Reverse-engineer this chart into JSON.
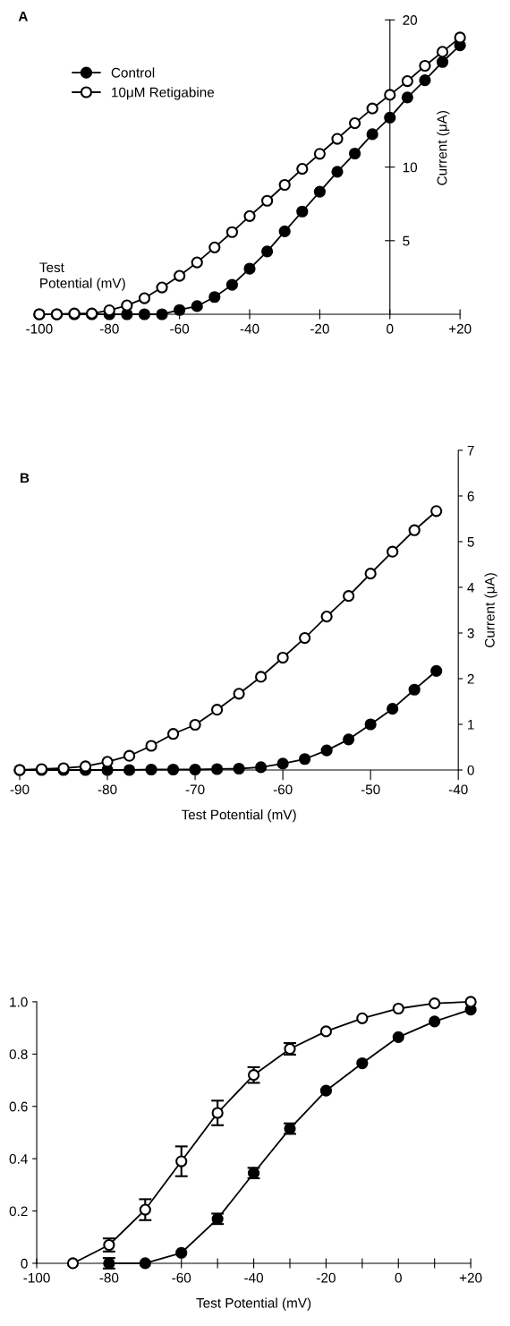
{
  "chart_data": [
    {
      "type": "line",
      "title": "A",
      "xlabel": "Test\nPotential (mV)",
      "ylabel": "Current (μA)",
      "marker": "circle",
      "legend": "top left",
      "grid": false,
      "xlim": [
        -100,
        20
      ],
      "xticks": [
        -100,
        -80,
        -60,
        -40,
        -20,
        0,
        {
          "value": 20,
          "label": "+20"
        }
      ],
      "ylim": [
        0,
        20
      ],
      "yticks": [
        5,
        10,
        20
      ],
      "x": [
        -100,
        -95,
        -90,
        -85,
        -80,
        -75,
        -70,
        -65,
        -60,
        -55,
        -50,
        -45,
        -40,
        -35,
        -30,
        -25,
        -20,
        -15,
        -10,
        -5,
        0,
        5,
        10,
        15,
        20
      ],
      "series": [
        {
          "name": "Control",
          "color": "#000000",
          "values": [
            0,
            0,
            0,
            0,
            0,
            0,
            0,
            0,
            0.29,
            0.55,
            1.17,
            2.0,
            3.1,
            4.27,
            5.63,
            6.98,
            8.33,
            9.68,
            10.92,
            12.23,
            13.36,
            14.73,
            15.9,
            17.14,
            18.27
          ]
        },
        {
          "name": "10μM Retigabine",
          "color": "#000000",
          "values": [
            0,
            0,
            0.05,
            0.05,
            0.27,
            0.6,
            1.09,
            1.82,
            2.61,
            3.52,
            4.54,
            5.58,
            6.67,
            7.71,
            8.79,
            9.88,
            10.9,
            11.92,
            12.98,
            13.98,
            14.91,
            15.84,
            16.88,
            17.83,
            18.8
          ]
        }
      ]
    },
    {
      "type": "line",
      "title": "B",
      "xlabel": "Test Potential (mV)",
      "ylabel": "Current (μA)",
      "marker": "circle",
      "grid": false,
      "xlim": [
        -90,
        -40
      ],
      "xticks": [
        -90,
        -80,
        -70,
        -60,
        -50,
        -40
      ],
      "ylim": [
        0,
        7
      ],
      "yticks": [
        0,
        1,
        2,
        3,
        4,
        5,
        6,
        7
      ],
      "x": [
        -90,
        -87.5,
        -85,
        -82.5,
        -80,
        -77.5,
        -75,
        -72.5,
        -70,
        -67.5,
        -65,
        -62.5,
        -60,
        -57.5,
        -55,
        -52.5,
        -50,
        -47.5,
        -45,
        -42.5
      ],
      "series": [
        {
          "color": "#000000",
          "values": [
            0,
            0,
            0,
            0,
            0,
            0,
            0.01,
            0.01,
            0.01,
            0.02,
            0.03,
            0.06,
            0.14,
            0.24,
            0.43,
            0.67,
            1.0,
            1.34,
            1.76,
            2.17
          ]
        },
        {
          "color": "#000000",
          "values": [
            0,
            0.02,
            0.04,
            0.08,
            0.18,
            0.31,
            0.53,
            0.79,
            0.99,
            1.32,
            1.67,
            2.04,
            2.46,
            2.89,
            3.36,
            3.81,
            4.3,
            4.78,
            5.25,
            5.67
          ]
        }
      ]
    },
    {
      "type": "line",
      "xlabel": "Test Potential (mV)",
      "marker": "circle",
      "grid": false,
      "xlim": [
        -100,
        20
      ],
      "xticks": [
        -100,
        {
          "value": -90,
          "label": null
        },
        -80,
        {
          "value": -70,
          "label": null
        },
        -60,
        {
          "value": -50,
          "label": null
        },
        -40,
        {
          "value": -30,
          "label": null
        },
        -20,
        {
          "value": -10,
          "label": null
        },
        0,
        {
          "value": 10,
          "label": null
        },
        {
          "value": 20,
          "label": "+20"
        }
      ],
      "ylim": [
        0,
        1.0
      ],
      "yticks": [
        0,
        0.2,
        0.4,
        0.6,
        0.8,
        {
          "value": 1.0,
          "label": "1.0"
        }
      ],
      "series": [
        {
          "color": "#000000",
          "x": [
            -80,
            -70,
            -60,
            -50,
            -40,
            -30,
            -20,
            -10,
            0,
            10,
            20
          ],
          "values": [
            0,
            0,
            0.04,
            0.17,
            0.345,
            0.515,
            0.66,
            0.765,
            0.865,
            0.925,
            0.97
          ],
          "errors": [
            0.02,
            null,
            null,
            0.02,
            0.02,
            0.02,
            null,
            null,
            null,
            null,
            null
          ]
        },
        {
          "color": "#000000",
          "x": [
            -90,
            -80,
            -70,
            -60,
            -50,
            -40,
            -30,
            -20,
            -10,
            0,
            10,
            20
          ],
          "values": [
            0,
            0.07,
            0.205,
            0.39,
            0.575,
            0.72,
            0.82,
            0.887,
            0.937,
            0.974,
            0.994,
            1.0
          ],
          "errors": [
            null,
            0.025,
            0.04,
            0.057,
            0.047,
            0.03,
            0.022,
            null,
            null,
            null,
            null,
            null
          ]
        }
      ]
    }
  ]
}
